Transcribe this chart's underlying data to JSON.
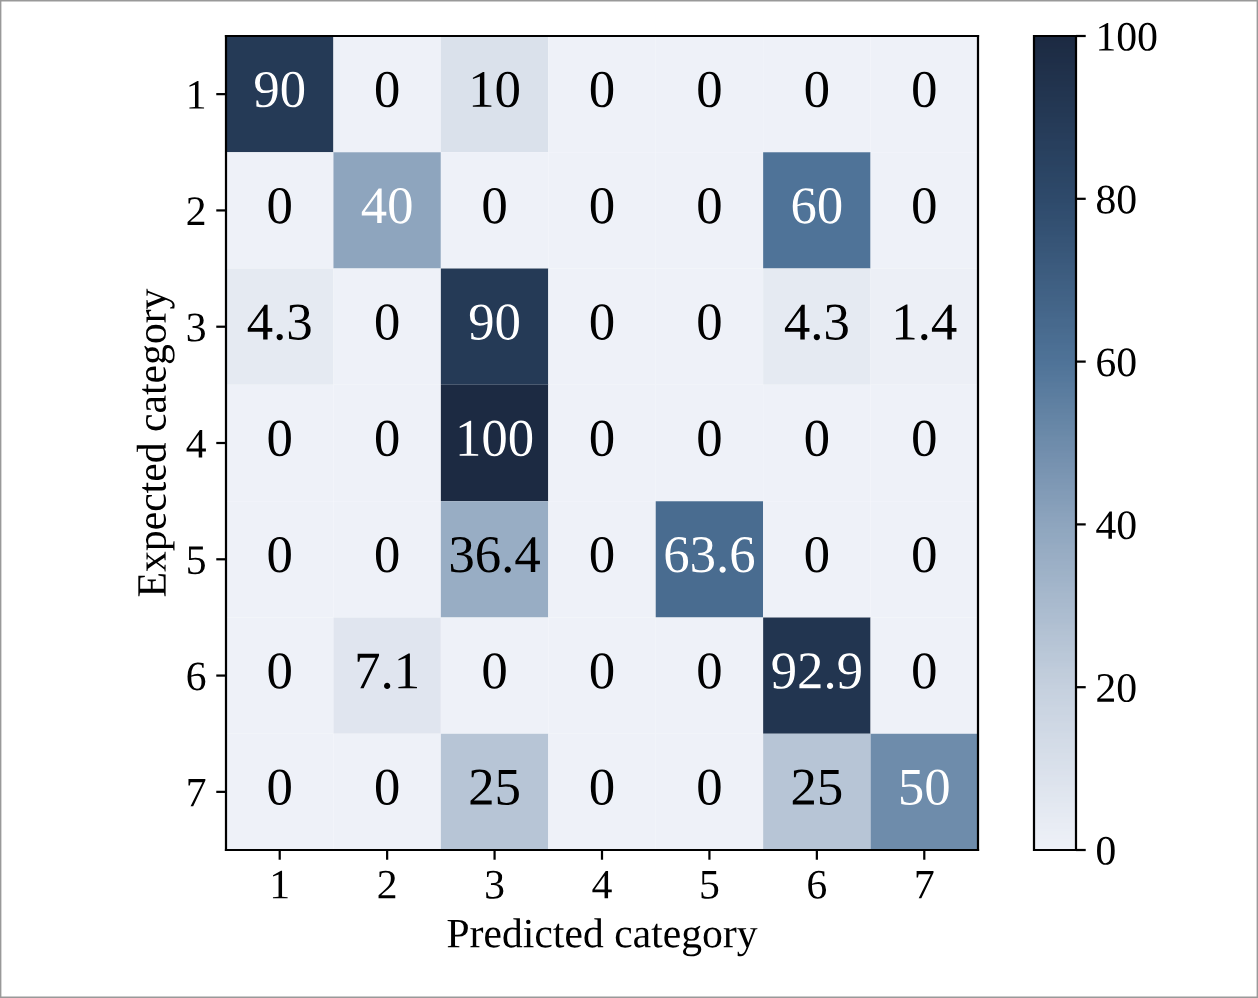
{
  "chart_data": {
    "type": "heatmap",
    "xlabel": "Predicted category",
    "ylabel": "Expected category",
    "categories": [
      "1",
      "2",
      "3",
      "4",
      "5",
      "6",
      "7"
    ],
    "y_categories": [
      "1",
      "2",
      "3",
      "4",
      "5",
      "6",
      "7"
    ],
    "cells": [
      [
        90,
        0,
        10,
        0,
        0,
        0,
        0
      ],
      [
        0,
        40,
        0,
        0,
        0,
        60,
        0
      ],
      [
        4.3,
        0,
        90,
        0,
        0,
        4.3,
        1.4
      ],
      [
        0,
        0,
        100,
        0,
        0,
        0,
        0
      ],
      [
        0,
        0,
        36.4,
        0,
        63.6,
        0,
        0
      ],
      [
        0,
        7.1,
        0,
        0,
        0,
        92.9,
        0
      ],
      [
        0,
        0,
        25,
        0,
        0,
        25,
        50
      ]
    ],
    "clim": [
      0,
      100
    ],
    "cticks": [
      0,
      20,
      40,
      60,
      80,
      100
    ],
    "data_labels": true
  }
}
